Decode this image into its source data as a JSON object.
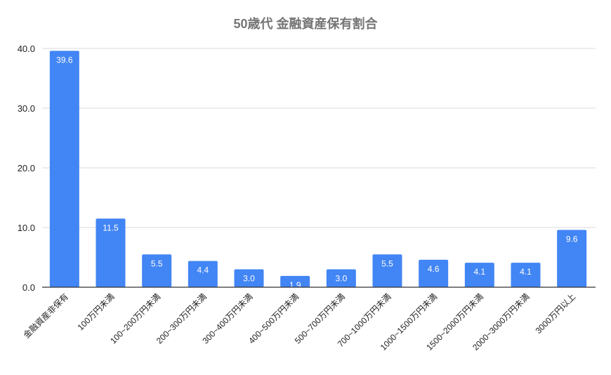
{
  "chart_data": {
    "type": "bar",
    "title": "50歳代 金融資産保有割合",
    "xlabel": "",
    "ylabel": "",
    "categories": [
      "金融資産非保有",
      "100万円未満",
      "100~200万円未満",
      "200~300万円未満",
      "300~400万円未満",
      "400~500万円未満",
      "500~700万円未満",
      "700~1000万円未満",
      "1000~1500万円未満",
      "1500~2000万円未満",
      "2000~3000万円未満",
      "3000万円以上"
    ],
    "values": [
      39.6,
      11.5,
      5.5,
      4.4,
      3.0,
      1.9,
      3.0,
      5.5,
      4.6,
      4.1,
      4.1,
      9.6
    ],
    "data_labels": [
      "39.6",
      "11.5",
      "5.5",
      "4.4",
      "3.0",
      "1.9",
      "3.0",
      "5.5",
      "4.6",
      "4.1",
      "4.1",
      "9.6"
    ],
    "ylim": [
      0,
      40
    ],
    "yticks": [
      "0.0",
      "10.0",
      "20.0",
      "30.0",
      "40.0"
    ],
    "grid": true,
    "legend": "none",
    "colors": {
      "bar": "#4285f4",
      "title": "#757575",
      "grid": "#d9d9d9",
      "axis": "#333333"
    }
  }
}
